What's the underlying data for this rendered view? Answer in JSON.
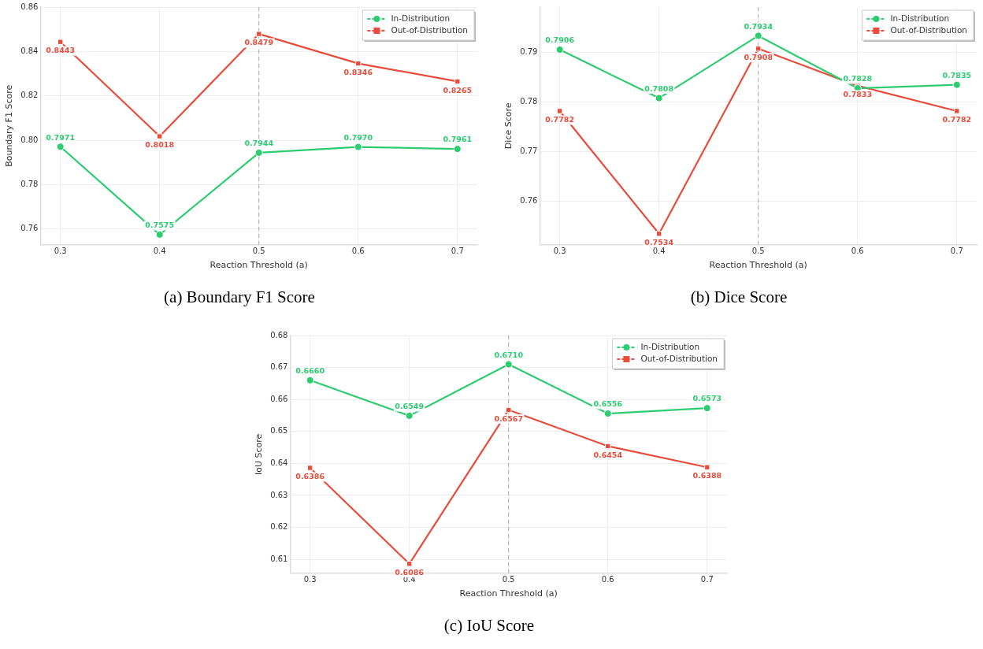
{
  "chart_data": [
    {
      "type": "line",
      "title": "(a) Boundary F1 Score",
      "xlabel": "Reaction Threshold (a)",
      "ylabel": "Boundary F1 Score",
      "x": [
        0.3,
        0.4,
        0.5,
        0.6,
        0.7
      ],
      "xlim": [
        0.28,
        0.72
      ],
      "xticks": [
        {
          "value": 0.3,
          "label": "0.3"
        },
        {
          "value": 0.4,
          "label": "0.4"
        },
        {
          "value": 0.5,
          "label": "0.5"
        },
        {
          "value": 0.6,
          "label": "0.6"
        },
        {
          "value": 0.7,
          "label": "0.7"
        }
      ],
      "ylim": [
        0.753,
        0.86
      ],
      "yticks": [
        {
          "value": 0.76,
          "label": "0.76"
        },
        {
          "value": 0.78,
          "label": "0.78"
        },
        {
          "value": 0.8,
          "label": "0.80"
        },
        {
          "value": 0.82,
          "label": "0.82"
        },
        {
          "value": 0.84,
          "label": "0.84"
        },
        {
          "value": 0.86,
          "label": "0.86"
        }
      ],
      "grid": true,
      "legend": "top right",
      "line_style": "solid",
      "series": [
        {
          "name": "In-Distribution",
          "color": "#2ecc71",
          "marker": "circle",
          "values": [
            0.7971,
            0.7575,
            0.7944,
            0.797,
            0.7961
          ],
          "value_labels": [
            "0.7971",
            "0.7575",
            "0.7944",
            "0.7970",
            "0.7961"
          ]
        },
        {
          "name": "Out-of-Distribution",
          "color": "#e74c3c",
          "marker": "square",
          "values": [
            0.8443,
            0.8018,
            0.8479,
            0.8346,
            0.8265
          ],
          "value_labels": [
            "0.8443",
            "0.8018",
            "0.8479",
            "0.8346",
            "0.8265"
          ]
        }
      ],
      "ref_lines": [
        {
          "axis": "x",
          "value": 0.5,
          "color": "#aaaaaa",
          "line_style": "dashed"
        }
      ]
    },
    {
      "type": "line",
      "title": "(b) Dice Score",
      "xlabel": "Reaction Threshold (a)",
      "ylabel": "Dice Score",
      "x": [
        0.3,
        0.4,
        0.5,
        0.6,
        0.7
      ],
      "xlim": [
        0.28,
        0.72
      ],
      "xticks": [
        {
          "value": 0.3,
          "label": "0.3"
        },
        {
          "value": 0.4,
          "label": "0.4"
        },
        {
          "value": 0.5,
          "label": "0.5"
        },
        {
          "value": 0.6,
          "label": "0.6"
        },
        {
          "value": 0.7,
          "label": "0.7"
        }
      ],
      "ylim": [
        0.7512,
        0.7992
      ],
      "yticks": [
        {
          "value": 0.76,
          "label": "0.76"
        },
        {
          "value": 0.77,
          "label": "0.77"
        },
        {
          "value": 0.78,
          "label": "0.78"
        },
        {
          "value": 0.79,
          "label": "0.79"
        }
      ],
      "grid": true,
      "legend": "top right",
      "line_style": "solid",
      "series": [
        {
          "name": "In-Distribution",
          "color": "#2ecc71",
          "marker": "circle",
          "values": [
            0.7906,
            0.7808,
            0.7934,
            0.7828,
            0.7835
          ],
          "value_labels": [
            "0.7906",
            "0.7808",
            "0.7934",
            "0.7828",
            "0.7835"
          ]
        },
        {
          "name": "Out-of-Distribution",
          "color": "#e74c3c",
          "marker": "square",
          "values": [
            0.7782,
            0.7534,
            0.7908,
            0.7833,
            0.7782
          ],
          "value_labels": [
            "0.7782",
            "0.7534",
            "0.7908",
            "0.7833",
            "0.7782"
          ]
        }
      ],
      "ref_lines": [
        {
          "axis": "x",
          "value": 0.5,
          "color": "#aaaaaa",
          "line_style": "dashed"
        }
      ]
    },
    {
      "type": "line",
      "title": "(c) IoU Score",
      "xlabel": "Reaction Threshold (a)",
      "ylabel": "IoU Score",
      "x": [
        0.3,
        0.4,
        0.5,
        0.6,
        0.7
      ],
      "xlim": [
        0.28,
        0.72
      ],
      "xticks": [
        {
          "value": 0.3,
          "label": "0.3"
        },
        {
          "value": 0.4,
          "label": "0.4"
        },
        {
          "value": 0.5,
          "label": "0.5"
        },
        {
          "value": 0.6,
          "label": "0.6"
        },
        {
          "value": 0.7,
          "label": "0.7"
        }
      ],
      "ylim": [
        0.6057,
        0.68
      ],
      "yticks": [
        {
          "value": 0.61,
          "label": "0.61"
        },
        {
          "value": 0.62,
          "label": "0.62"
        },
        {
          "value": 0.63,
          "label": "0.63"
        },
        {
          "value": 0.64,
          "label": "0.64"
        },
        {
          "value": 0.65,
          "label": "0.65"
        },
        {
          "value": 0.66,
          "label": "0.66"
        },
        {
          "value": 0.67,
          "label": "0.67"
        },
        {
          "value": 0.68,
          "label": "0.68"
        }
      ],
      "grid": true,
      "legend": "top right",
      "line_style": "solid",
      "series": [
        {
          "name": "In-Distribution",
          "color": "#2ecc71",
          "marker": "circle",
          "values": [
            0.666,
            0.6549,
            0.671,
            0.6556,
            0.6573
          ],
          "value_labels": [
            "0.6660",
            "0.6549",
            "0.6710",
            "0.6556",
            "0.6573"
          ]
        },
        {
          "name": "Out-of-Distribution",
          "color": "#e74c3c",
          "marker": "square",
          "values": [
            0.6386,
            0.6086,
            0.6567,
            0.6454,
            0.6388
          ],
          "value_labels": [
            "0.6386",
            "0.6086",
            "0.6567",
            "0.6454",
            "0.6388"
          ]
        }
      ],
      "ref_lines": [
        {
          "axis": "x",
          "value": 0.5,
          "color": "#aaaaaa",
          "line_style": "dashed"
        }
      ]
    }
  ]
}
